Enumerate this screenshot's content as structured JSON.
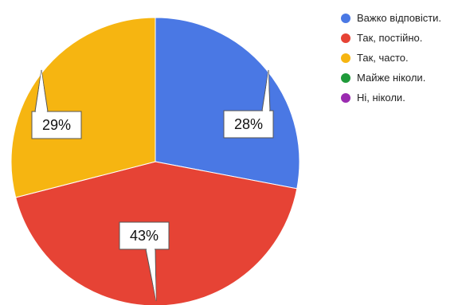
{
  "chart_data": {
    "type": "pie",
    "title": "",
    "categories": [
      "Важко відповісти.",
      "Так, постійно.",
      "Так, часто.",
      "Майже ніколи.",
      "Ні, ніколи."
    ],
    "values": [
      28,
      43,
      29,
      0,
      0
    ],
    "data_labels": [
      "28%",
      "43%",
      "29%",
      "",
      ""
    ],
    "colors": [
      "#4a78e4",
      "#e64335",
      "#f6b511",
      "#1f9a3a",
      "#9a2bb0"
    ],
    "legend_position": "right",
    "start_angle": "top, clockwise"
  }
}
